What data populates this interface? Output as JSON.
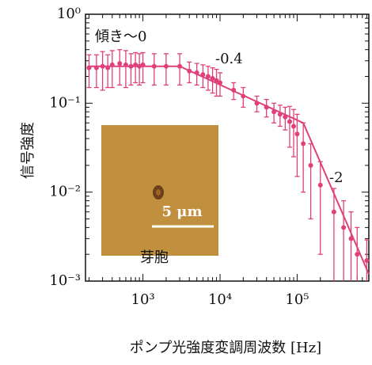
{
  "chart_data": {
    "type": "scatter",
    "x_label": "ポンプ光強度変調周波数 [Hz]",
    "y_label": "信号強度",
    "xscale": "log",
    "yscale": "log",
    "xlim": [
      180,
      850000
    ],
    "ylim": [
      0.001,
      1
    ],
    "xticks": [
      {
        "value": 1000,
        "label": "10³"
      },
      {
        "value": 10000,
        "label": "10⁴"
      },
      {
        "value": 100000,
        "label": "10⁵"
      }
    ],
    "yticks": [
      {
        "value": 0.001,
        "label": "10⁻³"
      },
      {
        "value": 0.01,
        "label": "10⁻²"
      },
      {
        "value": 0.1,
        "label": "10⁻¹"
      },
      {
        "value": 1,
        "label": "10⁰"
      }
    ],
    "color": "#e0407a",
    "x": [
      200,
      250,
      300,
      350,
      400,
      500,
      600,
      700,
      800,
      900,
      1000,
      1400,
      2000,
      3000,
      4000,
      5000,
      6000,
      7000,
      8000,
      9000,
      10000,
      15000,
      20000,
      30000,
      40000,
      50000,
      60000,
      70000,
      80000,
      90000,
      100000,
      120000,
      150000,
      200000,
      300000,
      400000,
      500000,
      600000,
      800000
    ],
    "values": [
      0.25,
      0.25,
      0.26,
      0.25,
      0.27,
      0.28,
      0.27,
      0.26,
      0.27,
      0.26,
      0.27,
      0.26,
      0.26,
      0.26,
      0.23,
      0.22,
      0.21,
      0.2,
      0.19,
      0.18,
      0.17,
      0.14,
      0.12,
      0.1,
      0.09,
      0.08,
      0.075,
      0.07,
      0.062,
      0.055,
      0.045,
      0.035,
      0.02,
      0.012,
      0.006,
      0.004,
      0.003,
      0.002,
      0.0017
    ],
    "errors": [
      0.1,
      0.1,
      0.12,
      0.1,
      0.12,
      0.12,
      0.12,
      0.1,
      0.1,
      0.1,
      0.1,
      0.1,
      0.1,
      0.1,
      0.06,
      0.06,
      0.06,
      0.06,
      0.06,
      0.06,
      0.05,
      0.03,
      0.03,
      0.02,
      0.02,
      0.02,
      0.02,
      0.02,
      0.03,
      0.03,
      0.03,
      0.025,
      0.015,
      0.01,
      0.005,
      0.004,
      0.003,
      0.002,
      0.0012
    ],
    "fit": {
      "x": [
        200,
        3000,
        120000,
        850000
      ],
      "values": [
        0.26,
        0.26,
        0.06,
        0.0012
      ]
    },
    "annotations": [
      "傾き〜0",
      "-0.4",
      "-2"
    ],
    "inset": {
      "scale_bar": "5 μm",
      "caption": "芽胞"
    }
  }
}
